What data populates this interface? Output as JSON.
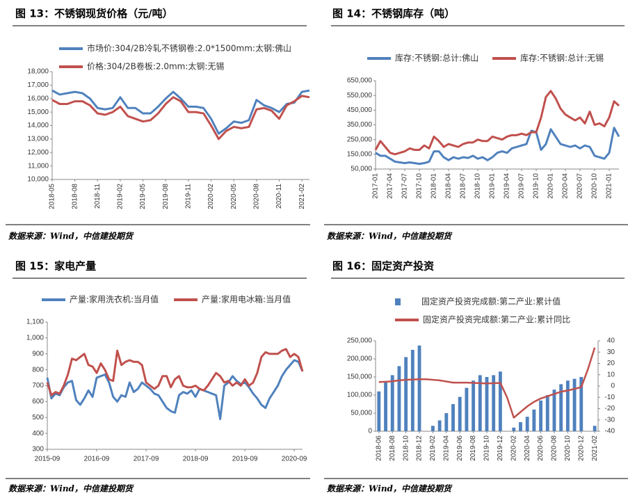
{
  "chart_data": [
    {
      "type": "line",
      "title": "图 13：不锈钢现货价格（元/吨）",
      "source": "数据来源：Wind，中信建投期货",
      "categories": [
        "2018-05",
        null,
        null,
        "2018-08",
        null,
        null,
        "2018-11",
        null,
        null,
        "2019-02",
        null,
        null,
        "2019-05",
        null,
        null,
        "2019-08",
        null,
        null,
        "2019-11",
        null,
        null,
        "2020-02",
        null,
        null,
        "2020-05",
        null,
        null,
        "2020-08",
        null,
        null,
        "2020-11",
        null,
        null,
        "2021-02",
        null
      ],
      "series": [
        {
          "name": "市场价:304/2B冷轧不锈钢卷:2.0*1500mm:太钢:佛山",
          "color": "#4f81bd",
          "values": [
            16600,
            16300,
            16400,
            16500,
            16400,
            16000,
            15300,
            15200,
            15300,
            16100,
            15300,
            15300,
            14900,
            14900,
            15400,
            16000,
            16500,
            16000,
            15400,
            15400,
            15300,
            14500,
            13400,
            13800,
            14300,
            14200,
            14400,
            15900,
            15500,
            15300,
            15000,
            15600,
            15700,
            16500,
            16600
          ]
        },
        {
          "name": "价格:304/2B卷板:2.0mm:太钢:无锡",
          "color": "#c0504d",
          "values": [
            15900,
            15600,
            15600,
            15800,
            15800,
            15500,
            14900,
            14800,
            15000,
            15400,
            14700,
            14500,
            14300,
            14400,
            14900,
            15600,
            16100,
            15800,
            15000,
            15000,
            14900,
            14000,
            13000,
            13600,
            13900,
            13800,
            13900,
            15200,
            15300,
            15100,
            14500,
            15500,
            15800,
            16200,
            16100
          ]
        }
      ],
      "ylim": [
        10000,
        18000
      ],
      "yticks": [
        {
          "value": 10000,
          "label": "10,000"
        },
        {
          "value": 11000,
          "label": "11,000"
        },
        {
          "value": 12000,
          "label": "12,000"
        },
        {
          "value": 13000,
          "label": "13,000"
        },
        {
          "value": 14000,
          "label": "14,000"
        },
        {
          "value": 15000,
          "label": "15,000"
        },
        {
          "value": 16000,
          "label": "16,000"
        },
        {
          "value": 17000,
          "label": "17,000"
        },
        {
          "value": 18000,
          "label": "18,000"
        }
      ]
    },
    {
      "type": "line",
      "title": "图 14：不锈钢库存（吨）",
      "source": "数据来源：Wind，中信建投期货",
      "categories": [
        "2017-01",
        null,
        null,
        "2017-04",
        null,
        null,
        "2017-07",
        null,
        null,
        "2017-10",
        null,
        null,
        "2018-01",
        null,
        null,
        "2018-04",
        null,
        null,
        "2018-07",
        null,
        null,
        "2018-10",
        null,
        null,
        "2019-01",
        null,
        null,
        "2019-04",
        null,
        null,
        "2019-07",
        null,
        null,
        "2019-10",
        null,
        null,
        "2020-01",
        null,
        null,
        "2020-04",
        null,
        null,
        "2020-07",
        null,
        null,
        "2020-10",
        null,
        null,
        "2021-01",
        null,
        null
      ],
      "series": [
        {
          "name": "库存:不锈钢:总计:佛山",
          "color": "#4f81bd",
          "values": [
            160000,
            140000,
            140000,
            120000,
            100000,
            95000,
            90000,
            95000,
            90000,
            85000,
            90000,
            100000,
            170000,
            170000,
            130000,
            110000,
            130000,
            120000,
            130000,
            125000,
            140000,
            120000,
            130000,
            110000,
            130000,
            160000,
            170000,
            160000,
            190000,
            200000,
            210000,
            220000,
            310000,
            300000,
            180000,
            220000,
            320000,
            270000,
            220000,
            210000,
            200000,
            210000,
            190000,
            210000,
            200000,
            140000,
            130000,
            120000,
            160000,
            330000,
            270000
          ]
        },
        {
          "name": "库存:不锈钢:总计:无锡",
          "color": "#c0504d",
          "values": [
            180000,
            240000,
            200000,
            160000,
            150000,
            160000,
            170000,
            190000,
            180000,
            180000,
            210000,
            190000,
            270000,
            240000,
            200000,
            220000,
            210000,
            200000,
            220000,
            230000,
            230000,
            250000,
            240000,
            240000,
            270000,
            260000,
            250000,
            270000,
            280000,
            280000,
            290000,
            280000,
            300000,
            300000,
            400000,
            540000,
            580000,
            530000,
            460000,
            420000,
            400000,
            380000,
            400000,
            360000,
            440000,
            350000,
            360000,
            340000,
            400000,
            510000,
            480000
          ]
        }
      ],
      "ylim": [
        50000,
        650000
      ],
      "yticks": [
        {
          "value": 50000,
          "label": "50,000"
        },
        {
          "value": 150000,
          "label": "150,000"
        },
        {
          "value": 250000,
          "label": "250,000"
        },
        {
          "value": 350000,
          "label": "350,000"
        },
        {
          "value": 450000,
          "label": "450,000"
        },
        {
          "value": 550000,
          "label": "550,000"
        },
        {
          "value": 650000,
          "label": "650,000"
        }
      ]
    },
    {
      "type": "line",
      "title": "图 15：家电产量",
      "source": "数据来源：Wind，中信建投期货",
      "categories": [
        "2015-09",
        null,
        null,
        null,
        null,
        null,
        null,
        null,
        null,
        null,
        null,
        null,
        "2016-09",
        null,
        null,
        null,
        null,
        null,
        null,
        null,
        null,
        null,
        null,
        null,
        "2017-09",
        null,
        null,
        null,
        null,
        null,
        null,
        null,
        null,
        null,
        null,
        null,
        "2018-09",
        null,
        null,
        null,
        null,
        null,
        null,
        null,
        null,
        null,
        null,
        null,
        "2019-09",
        null,
        null,
        null,
        null,
        null,
        null,
        null,
        null,
        null,
        null,
        null,
        "2020-09",
        null,
        null
      ],
      "series": [
        {
          "name": "产量:家用洗衣机:当月值",
          "color": "#4f81bd",
          "values": [
            750,
            620,
            650,
            640,
            690,
            720,
            730,
            610,
            580,
            620,
            670,
            630,
            750,
            760,
            770,
            720,
            630,
            600,
            640,
            630,
            720,
            660,
            680,
            720,
            700,
            680,
            650,
            640,
            600,
            560,
            540,
            530,
            640,
            660,
            650,
            670,
            630,
            680,
            670,
            660,
            650,
            640,
            490,
            700,
            720,
            760,
            730,
            710,
            720,
            690,
            650,
            620,
            580,
            560,
            620,
            660,
            700,
            760,
            800,
            830,
            860,
            850,
            790
          ]
        },
        {
          "name": "产量:家用电冰箱:当月值",
          "color": "#c0504d",
          "values": [
            720,
            640,
            660,
            650,
            700,
            770,
            870,
            860,
            880,
            900,
            830,
            820,
            780,
            840,
            800,
            740,
            730,
            920,
            830,
            850,
            860,
            850,
            850,
            830,
            720,
            700,
            680,
            700,
            760,
            760,
            690,
            740,
            760,
            700,
            690,
            690,
            700,
            680,
            670,
            700,
            740,
            780,
            760,
            720,
            730,
            700,
            720,
            700,
            740,
            700,
            720,
            780,
            880,
            910,
            900,
            900,
            900,
            920,
            930,
            880,
            900,
            880,
            790
          ]
        }
      ],
      "ylim": [
        300,
        1100
      ],
      "yticks": [
        300,
        400,
        500,
        600,
        700,
        800,
        900,
        {
          "value": 1000,
          "label": "1,000"
        },
        {
          "value": 1100,
          "label": "1,100"
        }
      ]
    },
    {
      "type": "bar-line",
      "title": "图 16：固定资产投资",
      "source": "数据来源：Wind，中信建投期货",
      "categories": [
        "2018-06",
        null,
        "2018-08",
        null,
        "2018-10",
        null,
        "2018-12",
        null,
        "2019-02",
        null,
        "2019-04",
        null,
        "2019-06",
        null,
        "2019-08",
        null,
        "2019-10",
        null,
        "2019-12",
        null,
        "2020-02",
        null,
        "2020-04",
        null,
        "2020-06",
        null,
        "2020-08",
        null,
        "2020-10",
        null,
        "2020-12",
        null,
        "2021-02"
      ],
      "series": [
        {
          "name": "固定资产投资完成额:第二产业:累计值",
          "color": "#4f81bd",
          "kind": "bar",
          "values": [
            110000,
            135000,
            155000,
            180000,
            205000,
            225000,
            237000,
            null,
            15000,
            30000,
            50000,
            75000,
            95000,
            120000,
            140000,
            155000,
            150000,
            155000,
            165000,
            null,
            10000,
            25000,
            40000,
            60000,
            85000,
            100000,
            115000,
            130000,
            140000,
            145000,
            150000,
            null,
            15000
          ]
        },
        {
          "name": "固定资产投资完成额:第二产业:累计同比",
          "color": "#c0504d",
          "kind": "line",
          "axis": "y2",
          "values": [
            3.5,
            3.8,
            4.2,
            5,
            5.5,
            5.7,
            6,
            6,
            5.5,
            5,
            4,
            3,
            3,
            3,
            2.8,
            2.5,
            2.3,
            2.5,
            2.8,
            -10,
            -28,
            -23,
            -18,
            -14,
            -11,
            -9,
            -7,
            -5,
            -4,
            -2.5,
            -1,
            15,
            34
          ]
        }
      ],
      "ylim": [
        0,
        250000
      ],
      "yticks": [
        0,
        {
          "value": 50000,
          "label": "50,000"
        },
        {
          "value": 100000,
          "label": "100,000"
        },
        {
          "value": 150000,
          "label": "150,000"
        },
        {
          "value": 200000,
          "label": "200,000"
        },
        {
          "value": 250000,
          "label": "250,000"
        }
      ],
      "y2lim": [
        -40,
        40
      ],
      "y2ticks": [
        -40,
        -30,
        -20,
        -10,
        0,
        10,
        20,
        30,
        40
      ]
    }
  ]
}
